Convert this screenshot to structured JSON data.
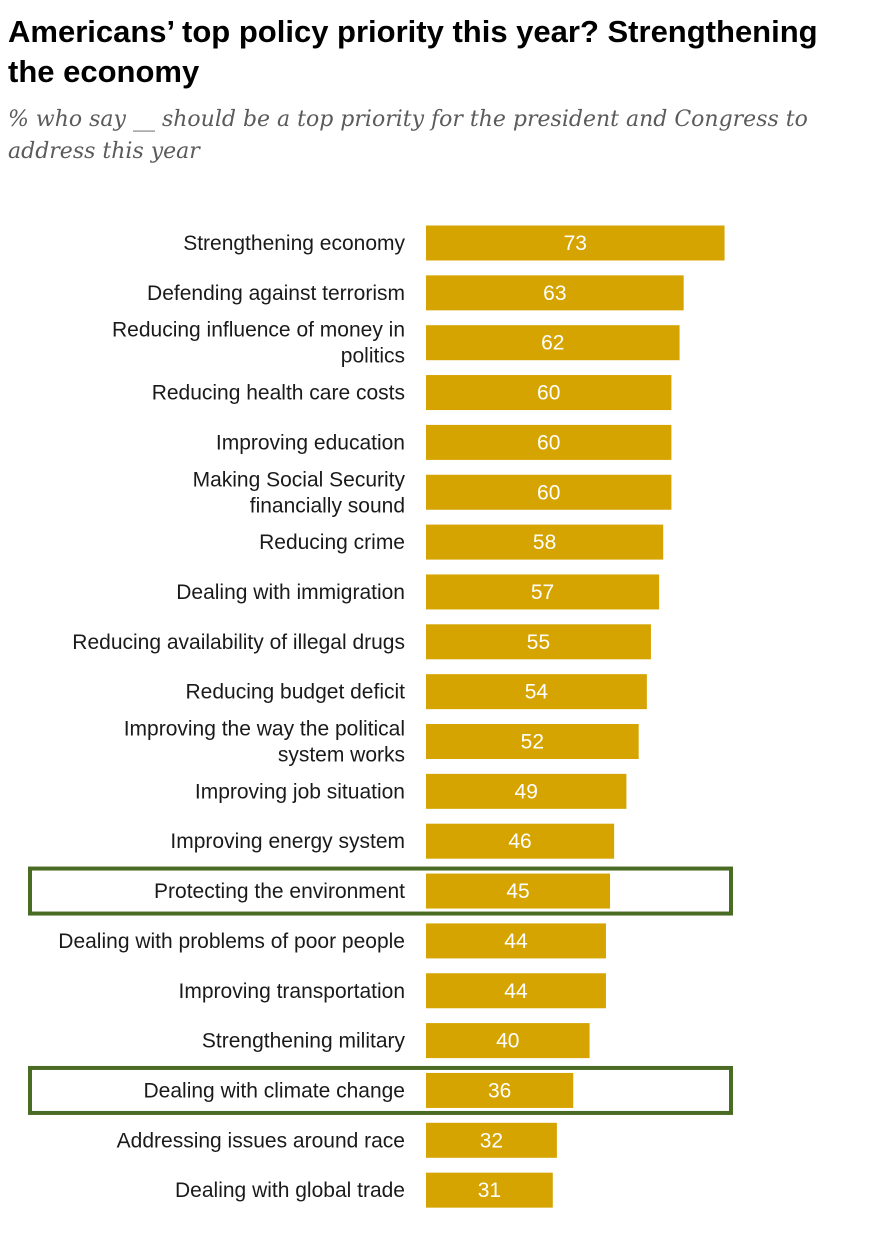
{
  "header": {
    "title": "Americans’ top policy priority this year? Strengthening the economy",
    "subtitle": "% who say __ should be a top priority for the president and Congress to address this year"
  },
  "colors": {
    "bar": "#d6a400",
    "highlight_box": "#4a6b23",
    "label_text": "#1a1a1a",
    "value_text": "#ffffff"
  },
  "chart_data": {
    "type": "bar",
    "orientation": "horizontal",
    "title": "Americans’ top policy priority this year? Strengthening the economy",
    "subtitle": "% who say __ should be a top priority for the president and Congress to address this year",
    "xlabel": "",
    "ylabel": "",
    "xlim": [
      0,
      100
    ],
    "grid": false,
    "categories": [
      "Strengthening economy",
      "Defending against terrorism",
      "Reducing influence of money in politics",
      "Reducing health care costs",
      "Improving education",
      "Making Social Security financially sound",
      "Reducing crime",
      "Dealing with immigration",
      "Reducing availability of illegal drugs",
      "Reducing budget deficit",
      "Improving the way the political system works",
      "Improving job situation",
      "Improving energy system",
      "Protecting the environment",
      "Dealing with problems of poor people",
      "Improving transportation",
      "Strengthening military",
      "Dealing with climate change",
      "Addressing issues around race",
      "Dealing with global trade"
    ],
    "label_lines": [
      [
        "Strengthening economy"
      ],
      [
        "Defending against terrorism"
      ],
      [
        "Reducing influence of money in",
        "politics"
      ],
      [
        "Reducing health care costs"
      ],
      [
        "Improving education"
      ],
      [
        "Making Social Security",
        "financially sound"
      ],
      [
        "Reducing crime"
      ],
      [
        "Dealing with immigration"
      ],
      [
        "Reducing availability of illegal drugs"
      ],
      [
        "Reducing budget deficit"
      ],
      [
        "Improving the way the political",
        "system works"
      ],
      [
        "Improving job situation"
      ],
      [
        "Improving energy system"
      ],
      [
        "Protecting the environment"
      ],
      [
        "Dealing with problems of poor people"
      ],
      [
        "Improving transportation"
      ],
      [
        "Strengthening military"
      ],
      [
        "Dealing with climate change"
      ],
      [
        "Addressing issues around race"
      ],
      [
        "Dealing with global trade"
      ]
    ],
    "values": [
      73,
      63,
      62,
      60,
      60,
      60,
      58,
      57,
      55,
      54,
      52,
      49,
      46,
      45,
      44,
      44,
      40,
      36,
      32,
      31
    ],
    "highlighted": [
      "Protecting the environment",
      "Dealing with climate change"
    ]
  }
}
